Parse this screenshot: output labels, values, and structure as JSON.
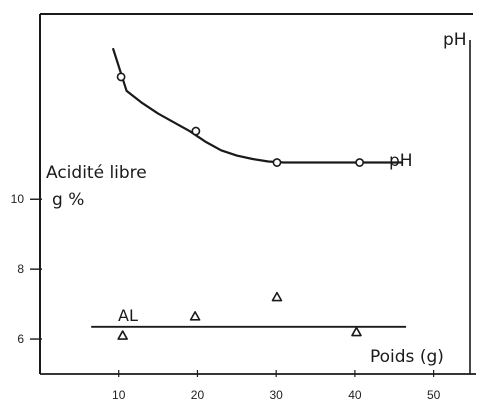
{
  "chart_data": {
    "type": "scatter",
    "title": "",
    "xlabel": "Poids (g)",
    "ylabel_left": "Acidité libre\ng %",
    "ylabel_right": "pH",
    "x_ticks": [
      10,
      20,
      30,
      40,
      50
    ],
    "y_ticks": [
      6,
      8,
      10
    ],
    "xlim": [
      0,
      55
    ],
    "ylim_left": [
      5,
      15.3
    ],
    "grid": false,
    "series": [
      {
        "name": "pH",
        "marker": "circle",
        "x": [
          10.3,
          19.8,
          30.1,
          40.6
        ],
        "y": [
          13.5,
          11.95,
          11.05,
          11.05
        ],
        "curve_x": [
          9.3,
          11,
          13,
          15,
          17,
          19,
          21,
          23,
          25,
          27,
          29,
          31,
          35,
          40,
          46
        ],
        "curve_y": [
          14.3,
          13.1,
          12.75,
          12.45,
          12.2,
          11.95,
          11.65,
          11.4,
          11.25,
          11.15,
          11.08,
          11.05,
          11.05,
          11.05,
          11.05
        ]
      },
      {
        "name": "AL",
        "marker": "triangle",
        "x": [
          10.5,
          19.7,
          30.1,
          40.2
        ],
        "y": [
          6.1,
          6.65,
          7.2,
          6.2
        ],
        "line_x": [
          6.5,
          46.5
        ],
        "line_y": [
          6.35,
          6.35
        ]
      }
    ]
  },
  "colors": {
    "ink": "#1a1a1a",
    "background": "#ffffff"
  }
}
